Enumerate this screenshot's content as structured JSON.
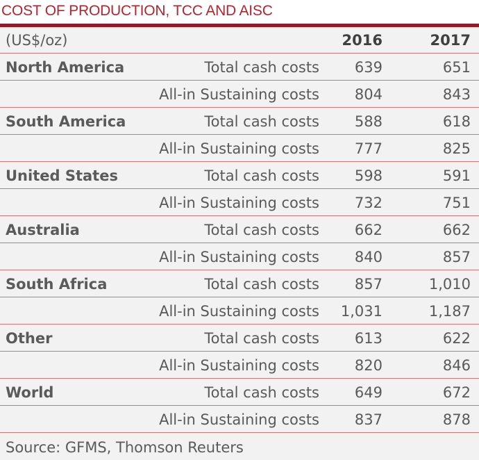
{
  "title": "COST OF PRODUCTION, TCC AND AISC",
  "header": {
    "unit": "(US$/oz)",
    "year1": "2016",
    "year2": "2017"
  },
  "rows": [
    {
      "region": "North America",
      "metric": "Total cash costs",
      "v2016": "639",
      "v2017": "651"
    },
    {
      "region": "",
      "metric": "All-in Sustaining costs",
      "v2016": "804",
      "v2017": "843"
    },
    {
      "region": "South America",
      "metric": "Total cash costs",
      "v2016": "588",
      "v2017": "618"
    },
    {
      "region": "",
      "metric": "All-in Sustaining costs",
      "v2016": "777",
      "v2017": "825"
    },
    {
      "region": "United States",
      "metric": "Total cash costs",
      "v2016": "598",
      "v2017": "591"
    },
    {
      "region": "",
      "metric": "All-in Sustaining costs",
      "v2016": "732",
      "v2017": "751"
    },
    {
      "region": "Australia",
      "metric": "Total cash costs",
      "v2016": "662",
      "v2017": "662"
    },
    {
      "region": "",
      "metric": "All-in Sustaining costs",
      "v2016": "840",
      "v2017": "857"
    },
    {
      "region": "South Africa",
      "metric": "Total cash costs",
      "v2016": "857",
      "v2017": "1,010"
    },
    {
      "region": "",
      "metric": "All-in Sustaining costs",
      "v2016": "1,031",
      "v2017": "1,187"
    },
    {
      "region": "Other",
      "metric": "Total cash costs",
      "v2016": "613",
      "v2017": "622"
    },
    {
      "region": "",
      "metric": "All-in Sustaining costs",
      "v2016": "820",
      "v2017": "846"
    },
    {
      "region": "World",
      "metric": "Total cash costs",
      "v2016": "649",
      "v2017": "672"
    },
    {
      "region": "",
      "metric": "All-in Sustaining costs",
      "v2016": "837",
      "v2017": "878"
    }
  ],
  "source": "Source: GFMS, Thomson Reuters",
  "colors": {
    "title": "#b1252f",
    "rule": "#8e1b25",
    "row_border": "#c9787d",
    "background": "#f2f2f2",
    "text": "#595959"
  }
}
